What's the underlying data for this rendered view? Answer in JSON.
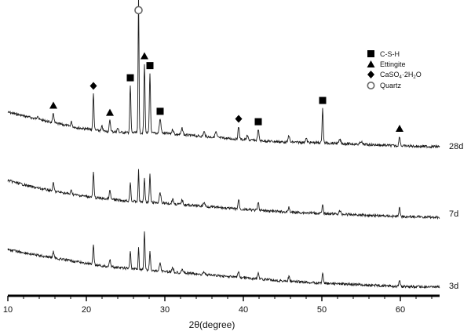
{
  "chart_data": {
    "type": "line",
    "xlabel": "2θ(degree)",
    "ylabel": "",
    "xlim": [
      10,
      65
    ],
    "x_ticks": [
      "10",
      "20",
      "30",
      "40",
      "50",
      "60"
    ],
    "grid": false,
    "legend_position": "top-right",
    "legend": [
      {
        "marker": "square",
        "label": "C-S-H"
      },
      {
        "marker": "triangle",
        "label": "Ettingite"
      },
      {
        "marker": "diamond",
        "label": "CaSO4·2H2O"
      },
      {
        "marker": "circle",
        "label": "Quartz"
      }
    ],
    "series": [
      {
        "name": "28d",
        "baseline": [
          [
            10,
            143
          ],
          [
            13,
            150
          ],
          [
            16,
            157
          ],
          [
            19,
            163
          ],
          [
            22,
            167
          ],
          [
            25,
            169
          ],
          [
            30,
            170
          ],
          [
            35,
            174
          ],
          [
            40,
            178
          ],
          [
            45,
            181
          ],
          [
            50,
            182
          ],
          [
            55,
            184
          ],
          [
            60,
            186
          ],
          [
            65,
            187
          ]
        ],
        "peaks": [
          {
            "x": 13.8,
            "h": 5,
            "w": 0.12
          },
          {
            "x": 15.8,
            "h": 12,
            "w": 0.12
          },
          {
            "x": 18.1,
            "h": 6,
            "w": 0.12
          },
          {
            "x": 20.9,
            "h": 46,
            "w": 0.1
          },
          {
            "x": 22.0,
            "h": 6,
            "w": 0.12
          },
          {
            "x": 23.0,
            "h": 14,
            "w": 0.12
          },
          {
            "x": 24.0,
            "h": 5,
            "w": 0.12
          },
          {
            "x": 25.6,
            "h": 60,
            "w": 0.1
          },
          {
            "x": 26.65,
            "h": 178,
            "w": 0.08
          },
          {
            "x": 27.4,
            "h": 88,
            "w": 0.1
          },
          {
            "x": 28.1,
            "h": 76,
            "w": 0.1
          },
          {
            "x": 29.4,
            "h": 18,
            "w": 0.15
          },
          {
            "x": 31.0,
            "h": 6,
            "w": 0.15
          },
          {
            "x": 32.2,
            "h": 8,
            "w": 0.15
          },
          {
            "x": 35.0,
            "h": 6,
            "w": 0.15
          },
          {
            "x": 36.5,
            "h": 7,
            "w": 0.15
          },
          {
            "x": 39.4,
            "h": 16,
            "w": 0.12
          },
          {
            "x": 40.5,
            "h": 5,
            "w": 0.15
          },
          {
            "x": 41.9,
            "h": 14,
            "w": 0.12
          },
          {
            "x": 45.8,
            "h": 9,
            "w": 0.12
          },
          {
            "x": 48.0,
            "h": 5,
            "w": 0.15
          },
          {
            "x": 50.1,
            "h": 44,
            "w": 0.1
          },
          {
            "x": 52.3,
            "h": 5,
            "w": 0.15
          },
          {
            "x": 55.0,
            "h": 4,
            "w": 0.15
          },
          {
            "x": 59.9,
            "h": 12,
            "w": 0.12
          }
        ]
      },
      {
        "name": "7d",
        "baseline": [
          [
            10,
            230
          ],
          [
            13,
            238
          ],
          [
            16,
            244
          ],
          [
            19,
            249
          ],
          [
            22,
            253
          ],
          [
            25,
            256
          ],
          [
            30,
            259
          ],
          [
            35,
            263
          ],
          [
            40,
            267
          ],
          [
            45,
            270
          ],
          [
            50,
            272
          ],
          [
            55,
            274
          ],
          [
            60,
            276
          ],
          [
            65,
            277
          ]
        ],
        "peaks": [
          {
            "x": 15.8,
            "h": 10,
            "w": 0.12
          },
          {
            "x": 18.1,
            "h": 5,
            "w": 0.12
          },
          {
            "x": 20.9,
            "h": 32,
            "w": 0.1
          },
          {
            "x": 23.0,
            "h": 11,
            "w": 0.12
          },
          {
            "x": 25.6,
            "h": 25,
            "w": 0.1
          },
          {
            "x": 26.65,
            "h": 40,
            "w": 0.08
          },
          {
            "x": 27.4,
            "h": 30,
            "w": 0.1
          },
          {
            "x": 28.1,
            "h": 35,
            "w": 0.1
          },
          {
            "x": 29.4,
            "h": 12,
            "w": 0.15
          },
          {
            "x": 31.0,
            "h": 6,
            "w": 0.15
          },
          {
            "x": 32.2,
            "h": 6,
            "w": 0.15
          },
          {
            "x": 35.0,
            "h": 5,
            "w": 0.15
          },
          {
            "x": 39.4,
            "h": 12,
            "w": 0.12
          },
          {
            "x": 41.9,
            "h": 10,
            "w": 0.12
          },
          {
            "x": 45.8,
            "h": 6,
            "w": 0.12
          },
          {
            "x": 50.1,
            "h": 11,
            "w": 0.1
          },
          {
            "x": 52.3,
            "h": 4,
            "w": 0.15
          },
          {
            "x": 59.9,
            "h": 11,
            "w": 0.12
          }
        ]
      },
      {
        "name": "3d",
        "baseline": [
          [
            10,
            318
          ],
          [
            13,
            324
          ],
          [
            16,
            329
          ],
          [
            19,
            334
          ],
          [
            22,
            339
          ],
          [
            25,
            342
          ],
          [
            30,
            346
          ],
          [
            35,
            350
          ],
          [
            40,
            354
          ],
          [
            45,
            358
          ],
          [
            50,
            361
          ],
          [
            55,
            363
          ],
          [
            60,
            365
          ],
          [
            65,
            366
          ]
        ],
        "peaks": [
          {
            "x": 15.8,
            "h": 8,
            "w": 0.12
          },
          {
            "x": 20.9,
            "h": 24,
            "w": 0.1
          },
          {
            "x": 23.0,
            "h": 10,
            "w": 0.12
          },
          {
            "x": 25.6,
            "h": 22,
            "w": 0.1
          },
          {
            "x": 26.65,
            "h": 28,
            "w": 0.08
          },
          {
            "x": 27.4,
            "h": 48,
            "w": 0.1
          },
          {
            "x": 28.1,
            "h": 24,
            "w": 0.1
          },
          {
            "x": 29.4,
            "h": 10,
            "w": 0.15
          },
          {
            "x": 31.0,
            "h": 6,
            "w": 0.15
          },
          {
            "x": 32.2,
            "h": 5,
            "w": 0.15
          },
          {
            "x": 35.0,
            "h": 4,
            "w": 0.15
          },
          {
            "x": 39.4,
            "h": 8,
            "w": 0.12
          },
          {
            "x": 41.9,
            "h": 8,
            "w": 0.12
          },
          {
            "x": 45.8,
            "h": 6,
            "w": 0.12
          },
          {
            "x": 50.1,
            "h": 14,
            "w": 0.1
          },
          {
            "x": 59.9,
            "h": 7,
            "w": 0.12
          }
        ]
      }
    ],
    "markers": [
      {
        "type": "triangle",
        "x": 15.8
      },
      {
        "type": "diamond",
        "x": 20.9
      },
      {
        "type": "triangle",
        "x": 23.0
      },
      {
        "type": "square",
        "x": 25.6
      },
      {
        "type": "circle",
        "x": 26.65
      },
      {
        "type": "triangle",
        "x": 27.4
      },
      {
        "type": "square",
        "x": 28.1
      },
      {
        "type": "square",
        "x": 29.4
      },
      {
        "type": "diamond",
        "x": 39.4
      },
      {
        "type": "square",
        "x": 41.9
      },
      {
        "type": "square",
        "x": 50.1
      },
      {
        "type": "triangle",
        "x": 59.9
      }
    ]
  },
  "labels": {
    "xlabel": "2θ(degree)",
    "series_28d": "28d",
    "series_7d": "7d",
    "series_3d": "3d",
    "legend_csh": "C-S-H",
    "legend_ettingite": "Ettingite",
    "legend_gypsum_main": "CaSO",
    "legend_gypsum_sub1": "4",
    "legend_gypsum_mid": "·2H",
    "legend_gypsum_sub2": "2",
    "legend_gypsum_end": "O",
    "legend_quartz": "Quartz",
    "tick_10": "10",
    "tick_20": "20",
    "tick_30": "30",
    "tick_40": "40",
    "tick_50": "50",
    "tick_60": "60"
  }
}
